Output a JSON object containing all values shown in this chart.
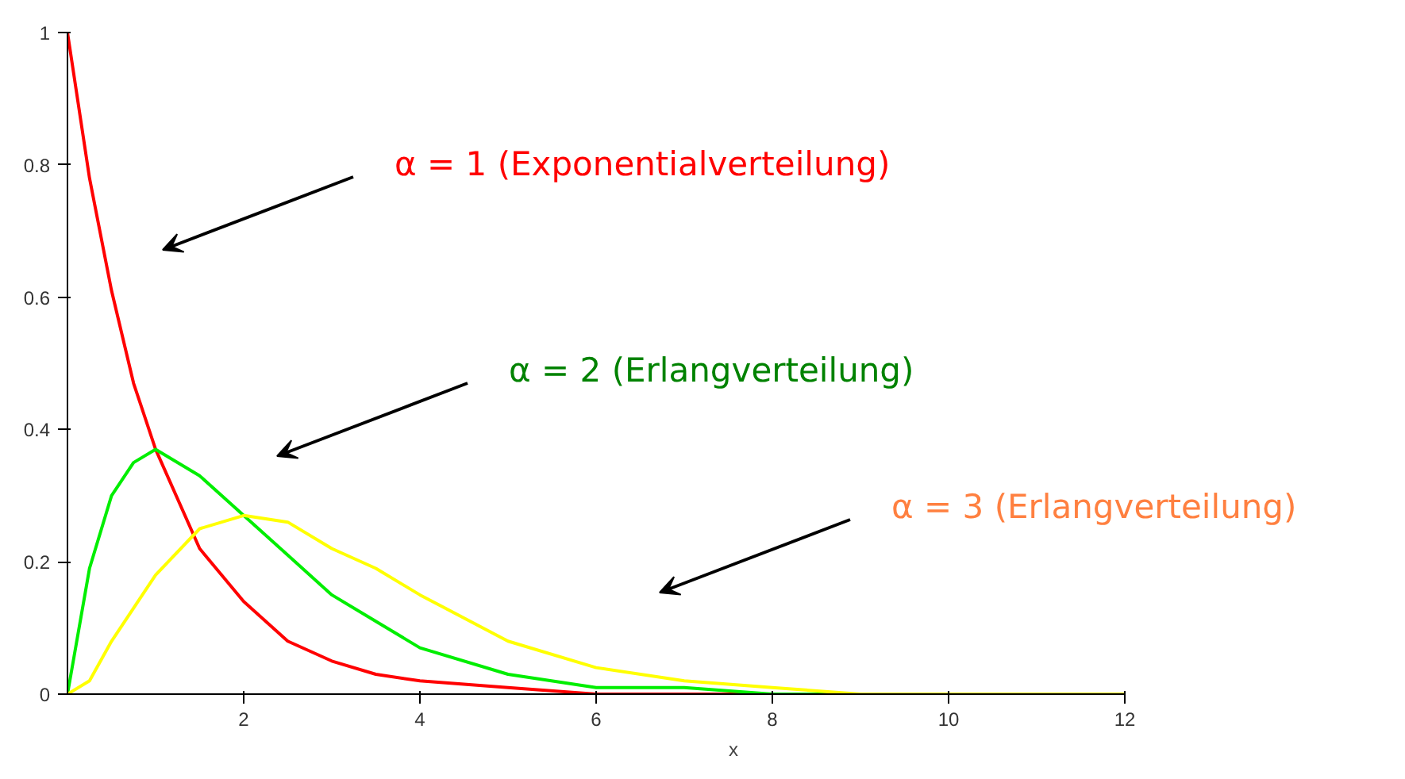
{
  "chart_data": {
    "type": "line",
    "xlabel": "x",
    "x": [
      0,
      0.25,
      0.5,
      0.75,
      1,
      1.5,
      2,
      2.5,
      3,
      3.5,
      4,
      5,
      6,
      7,
      8,
      9,
      10,
      11,
      12
    ],
    "series": [
      {
        "color": "#ff0000",
        "values": [
          1,
          0.78,
          0.61,
          0.47,
          0.37,
          0.22,
          0.14,
          0.08,
          0.05,
          0.03,
          0.02,
          0.01,
          0,
          0,
          0,
          0,
          null,
          null,
          null
        ]
      },
      {
        "color": "#00ee00",
        "values": [
          0,
          0.19,
          0.3,
          0.35,
          0.37,
          0.33,
          0.27,
          0.21,
          0.15,
          0.11,
          0.07,
          0.03,
          0.01,
          0.01,
          0,
          0,
          0,
          null,
          null
        ]
      },
      {
        "color": "#ffff00",
        "values": [
          0,
          0.02,
          0.08,
          0.13,
          0.18,
          0.25,
          0.27,
          0.26,
          0.22,
          0.19,
          0.15,
          0.08,
          0.04,
          0.02,
          0.01,
          0,
          0,
          0,
          0
        ]
      }
    ],
    "xlim": [
      0,
      12
    ],
    "ylim": [
      0,
      1
    ],
    "xticks": [
      2,
      4,
      6,
      8,
      10,
      12
    ],
    "yticks": [
      0,
      0.2,
      0.4,
      0.6,
      0.8,
      1
    ],
    "grid": false,
    "annotations": [
      "α = 1 (Exponentialverteilung)",
      "α = 2 (Erlangverteilung)",
      "α = 3 (Erlangverteilung)"
    ]
  }
}
